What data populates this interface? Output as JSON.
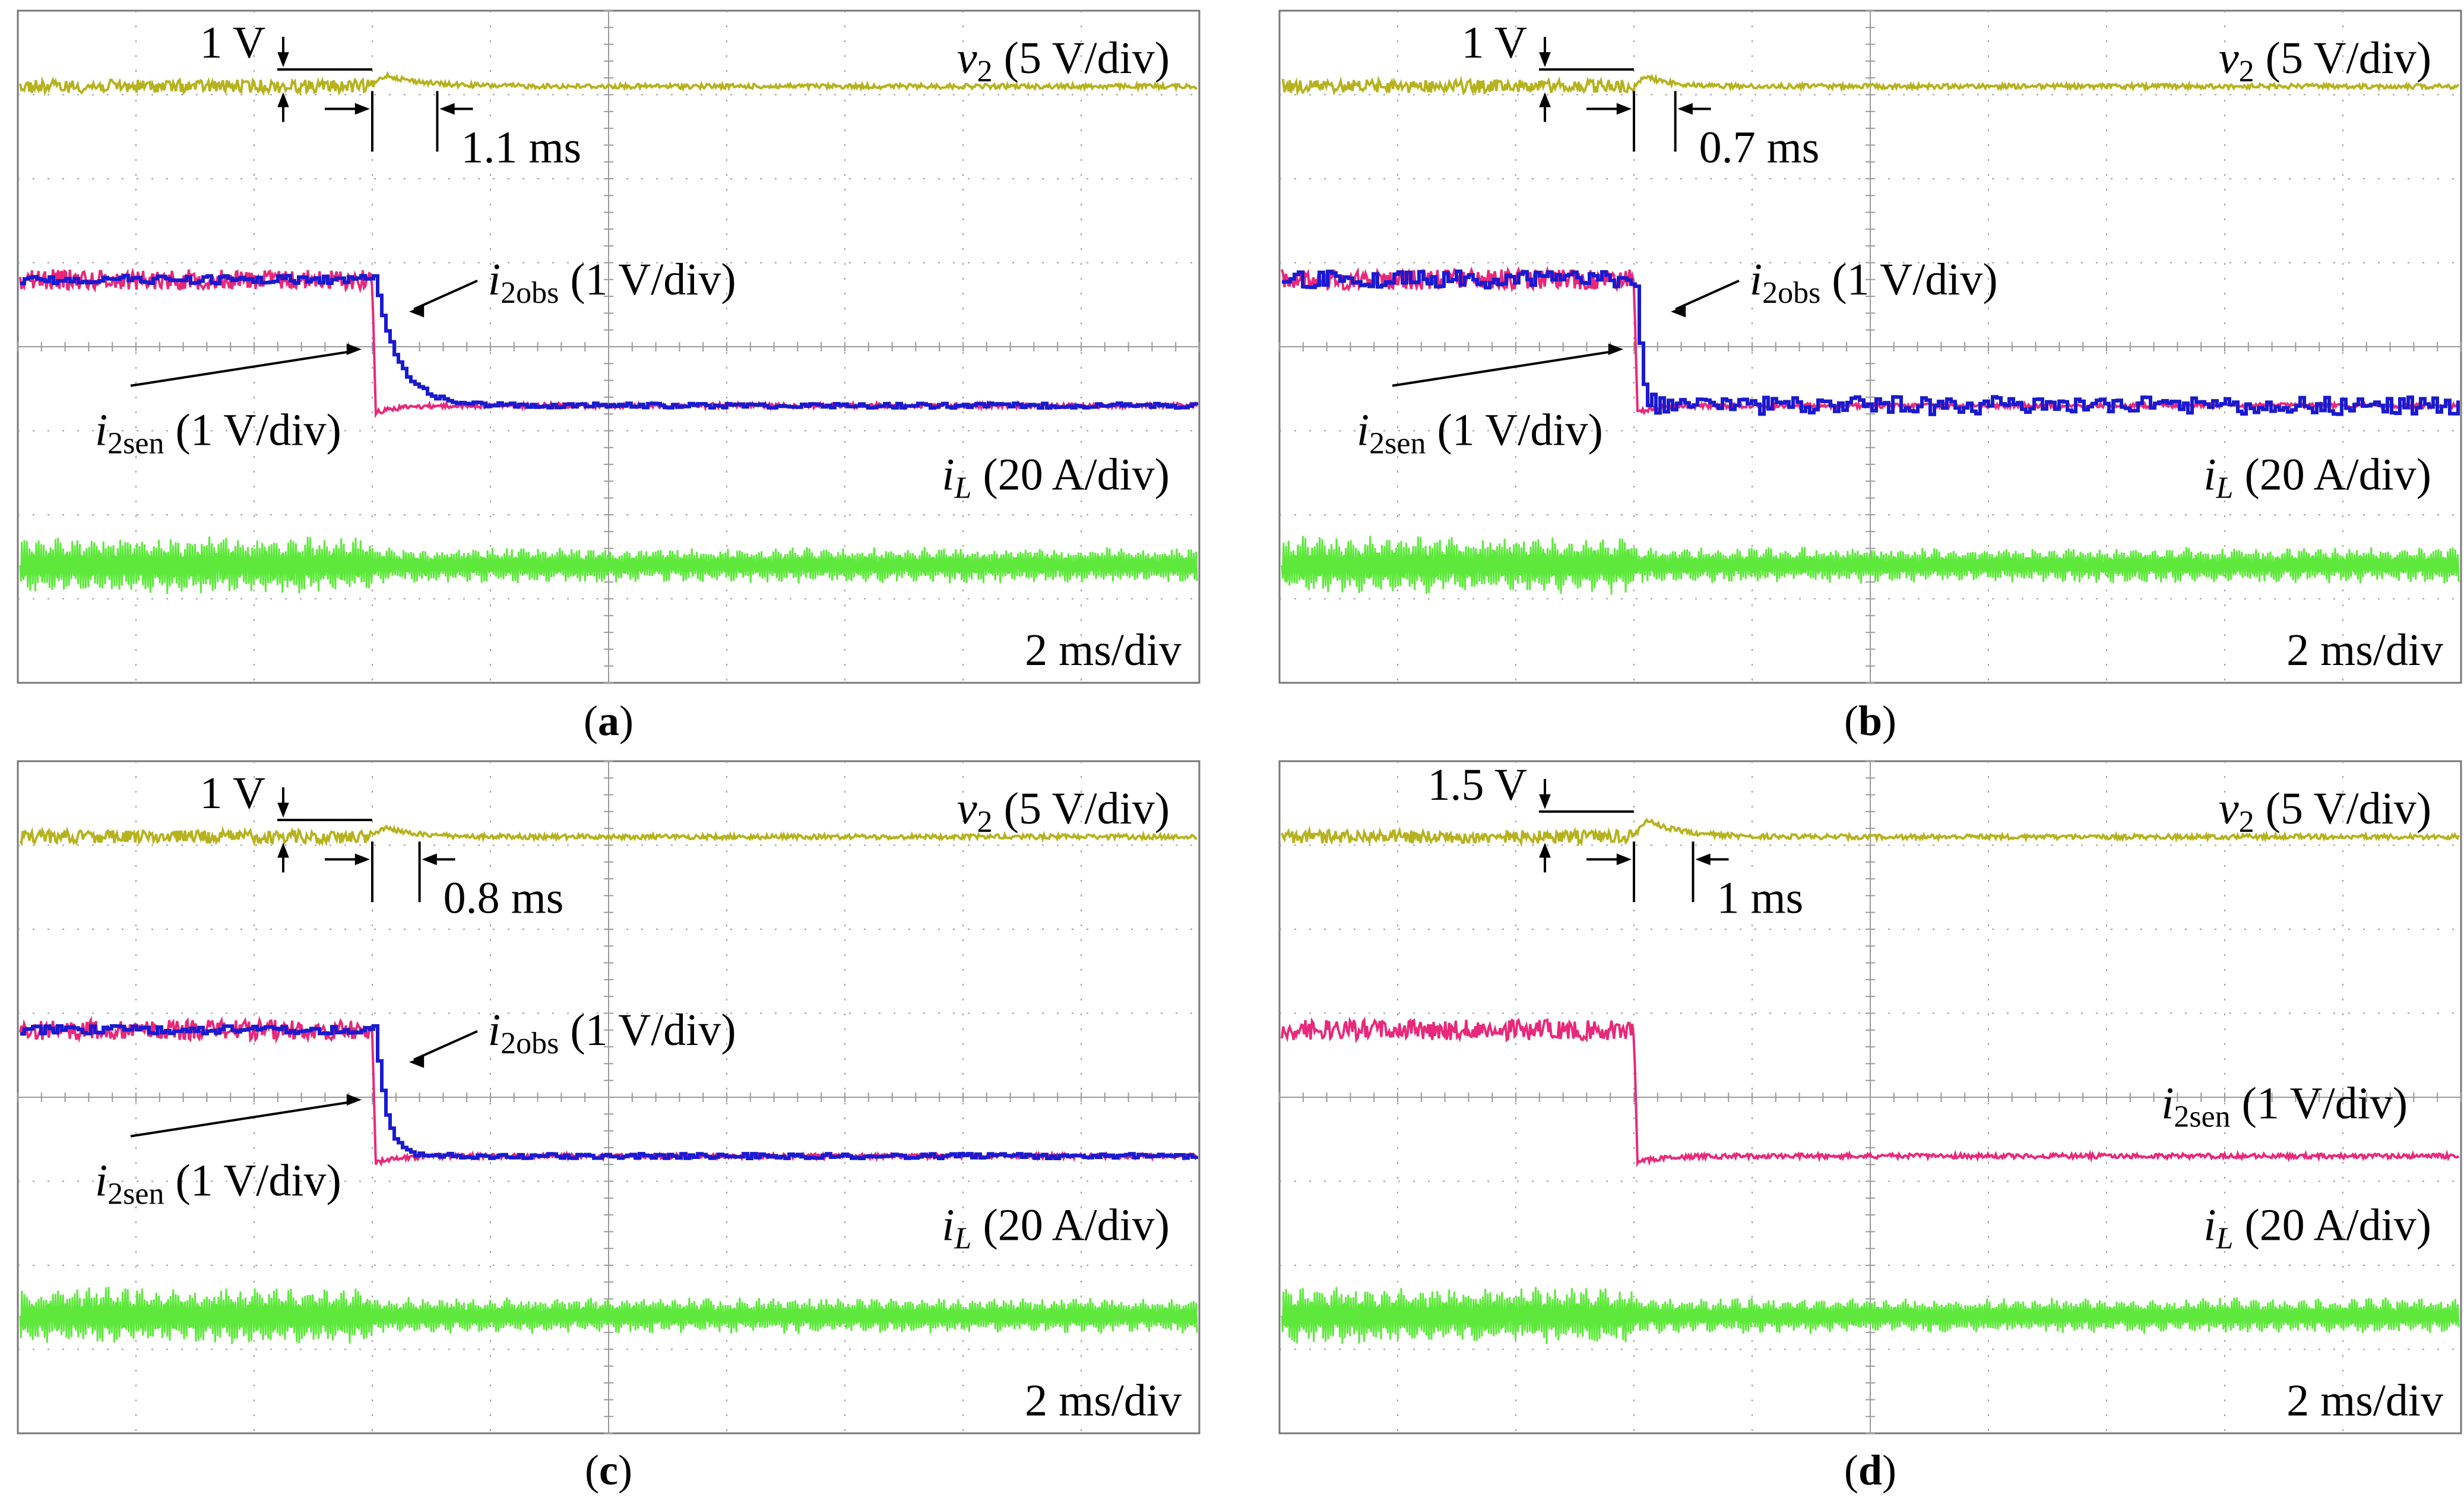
{
  "colors": {
    "v2": "#b6b21e",
    "i2sen": "#e8287a",
    "i2obs": "#1a1ad0",
    "iL": "#5ee83c",
    "grid": "#9a9a9a",
    "frame": "#777777",
    "annotation": "#000000"
  },
  "chart_data": [
    {
      "type": "line",
      "panel": "a",
      "caption": "(a)",
      "time_scale": "2 ms/div",
      "divisions": {
        "x": 10,
        "y": 8
      },
      "step_time_ms": 6,
      "annotations": {
        "overshoot_label": "1 V",
        "settling_label": "1.1 ms",
        "overshoot_V": 1,
        "settling_ms": 1.1
      },
      "channels": {
        "v2": {
          "name": "v",
          "subscript": "2",
          "scale": "(5 V/div)",
          "level_div": 7.1
        },
        "i2obs": {
          "name": "i",
          "subscript": "2obs",
          "scale": "(1 V/div)",
          "before_div": 4.8,
          "after_div": 3.3,
          "response": "smooth",
          "settle_ms": 1.1
        },
        "i2sen": {
          "name": "i",
          "subscript": "2sen",
          "scale": "(1 V/div)",
          "before_div": 4.8,
          "after_div": 3.3,
          "undershoot_div": 0.1
        },
        "iL": {
          "name": "i",
          "subscript": "L",
          "scale": "(20 A/div)",
          "level_div": 1.4,
          "ripple_before_div": 0.35,
          "ripple_after_div": 0.22
        }
      }
    },
    {
      "type": "line",
      "panel": "b",
      "caption": "(b)",
      "time_scale": "2 ms/div",
      "divisions": {
        "x": 10,
        "y": 8
      },
      "step_time_ms": 6,
      "annotations": {
        "overshoot_label": "1 V",
        "settling_label": "0.7 ms",
        "overshoot_V": 1,
        "settling_ms": 0.7
      },
      "channels": {
        "v2": {
          "name": "v",
          "subscript": "2",
          "scale": "(5 V/div)",
          "level_div": 7.1
        },
        "i2obs": {
          "name": "i",
          "subscript": "2obs",
          "scale": "(1 V/div)",
          "before_div": 4.8,
          "after_div": 3.3,
          "response": "noisy",
          "settle_ms": 0.2
        },
        "i2sen": {
          "name": "i",
          "subscript": "2sen",
          "scale": "(1 V/div)",
          "before_div": 4.8,
          "after_div": 3.3,
          "undershoot_div": 0.1
        },
        "iL": {
          "name": "i",
          "subscript": "L",
          "scale": "(20 A/div)",
          "level_div": 1.4,
          "ripple_before_div": 0.35,
          "ripple_after_div": 0.22
        }
      }
    },
    {
      "type": "line",
      "panel": "c",
      "caption": "(c)",
      "time_scale": "2 ms/div",
      "divisions": {
        "x": 10,
        "y": 8
      },
      "step_time_ms": 6,
      "annotations": {
        "overshoot_label": "1 V",
        "settling_label": "0.8 ms",
        "overshoot_V": 1,
        "settling_ms": 0.8
      },
      "channels": {
        "v2": {
          "name": "v",
          "subscript": "2",
          "scale": "(5 V/div)",
          "level_div": 7.1
        },
        "i2obs": {
          "name": "i",
          "subscript": "2obs",
          "scale": "(1 V/div)",
          "before_div": 4.8,
          "after_div": 3.3,
          "response": "fast",
          "settle_ms": 0.5
        },
        "i2sen": {
          "name": "i",
          "subscript": "2sen",
          "scale": "(1 V/div)",
          "before_div": 4.8,
          "after_div": 3.3,
          "undershoot_div": 0.1
        },
        "iL": {
          "name": "i",
          "subscript": "L",
          "scale": "(20 A/div)",
          "level_div": 1.4,
          "ripple_before_div": 0.35,
          "ripple_after_div": 0.22
        }
      }
    },
    {
      "type": "line",
      "panel": "d",
      "caption": "(d)",
      "time_scale": "2 ms/div",
      "divisions": {
        "x": 10,
        "y": 8
      },
      "step_time_ms": 6,
      "annotations": {
        "overshoot_label": "1.5 V",
        "settling_label": "1 ms",
        "overshoot_V": 1.5,
        "settling_ms": 1
      },
      "channels": {
        "v2": {
          "name": "v",
          "subscript": "2",
          "scale": "(5 V/div)",
          "level_div": 7.1
        },
        "i2sen": {
          "name": "i",
          "subscript": "2sen",
          "scale": "(1 V/div)",
          "before_div": 4.8,
          "after_div": 3.3,
          "undershoot_div": 0.1
        },
        "iL": {
          "name": "i",
          "subscript": "L",
          "scale": "(20 A/div)",
          "level_div": 1.4,
          "ripple_before_div": 0.35,
          "ripple_after_div": 0.22
        }
      }
    }
  ]
}
